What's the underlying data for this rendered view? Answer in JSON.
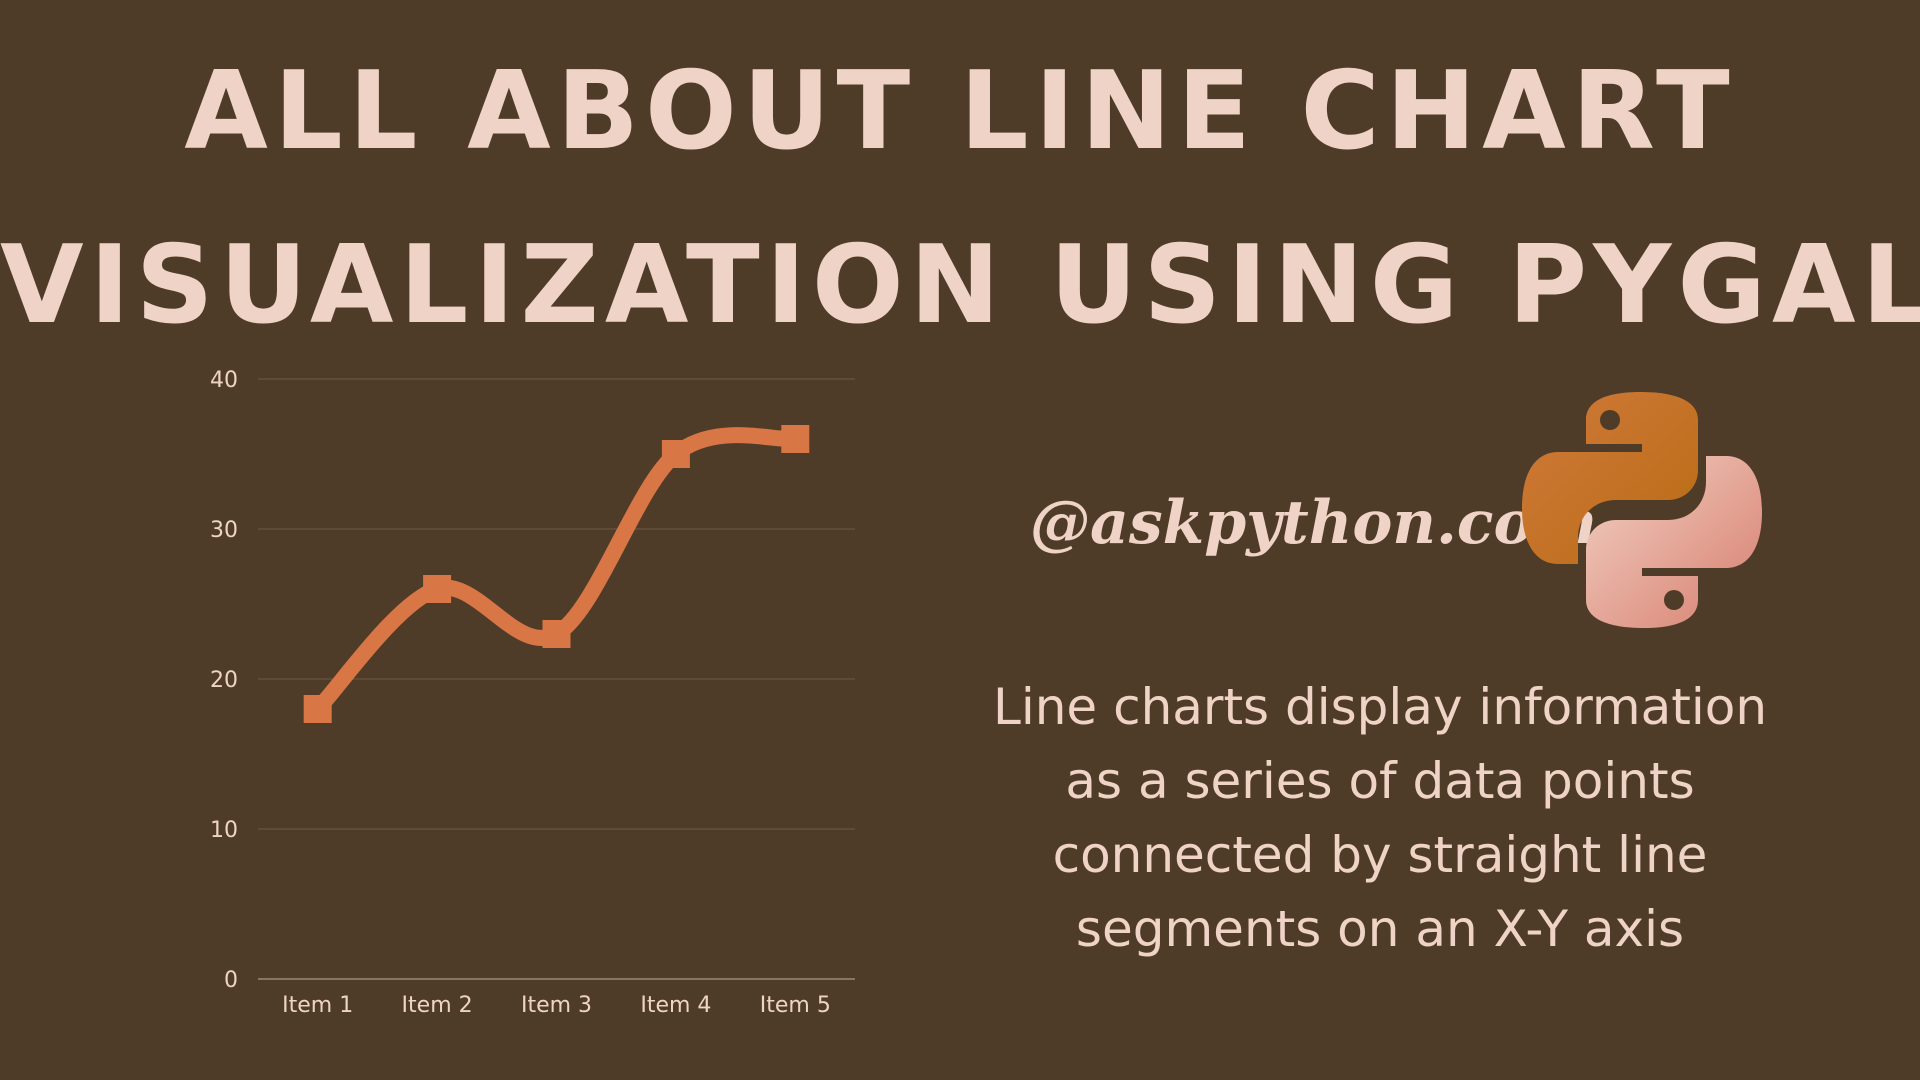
{
  "header": {
    "title_line1": "All About Line Chart",
    "title_line2": "Visualization Using Pygal"
  },
  "watermark": "@askpython.com",
  "logo": {
    "icon": "python-logo-icon"
  },
  "description": {
    "lines": [
      "Line charts display information",
      "as a series of data points",
      "connected by straight line",
      "segments on an X-Y axis"
    ]
  },
  "colors": {
    "background": "#4f3c28",
    "text": "#efd3c6",
    "line": "#d97646",
    "grid": "#6e5a45"
  },
  "chart_data": {
    "type": "line",
    "categories": [
      "Item 1",
      "Item 2",
      "Item 3",
      "Item 4",
      "Item 5"
    ],
    "series": [
      {
        "values": [
          18,
          26,
          23,
          35,
          36
        ]
      }
    ],
    "yticks": [
      "0",
      "10",
      "20",
      "30",
      "40"
    ],
    "ylim": [
      0,
      40
    ],
    "grid": true,
    "smooth": true,
    "markers": "square"
  }
}
